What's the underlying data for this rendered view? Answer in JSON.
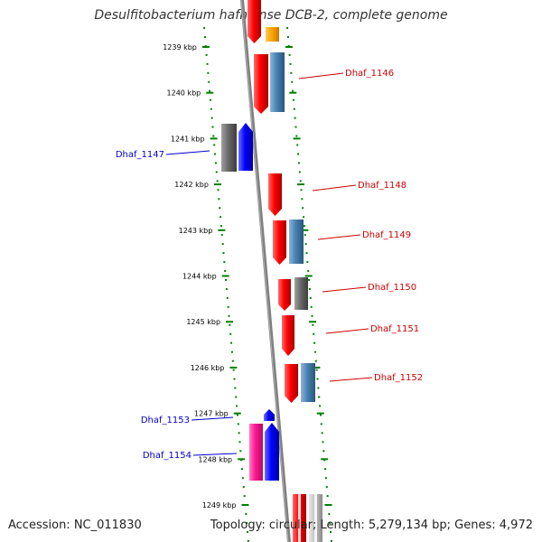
{
  "title": "Desulfitobacterium hafniense DCB-2, complete genome",
  "footer": {
    "accession": "Accession: NC_011830",
    "topology": "Topology: circular; Length: 5,279,134 bp; Genes: 4,972"
  },
  "colors": {
    "forward_gene": "#ff0000",
    "reverse_gene": "#0000ff",
    "feature_steelblue": "#4682b4",
    "feature_gray": "#696969",
    "feature_orange": "#ffa500",
    "feature_pink": "#ff1493",
    "feature_lightgray": "#c0c0c0",
    "forward_label": "#cc0000",
    "reverse_label": "#0000cc",
    "ruler": "#008000",
    "backbone": "#808080"
  },
  "ruler": {
    "unit": "kbp",
    "ticks": [
      "1239 kbp",
      "1240 kbp",
      "1241 kbp",
      "1242 kbp",
      "1243 kbp",
      "1244 kbp",
      "1245 kbp",
      "1246 kbp",
      "1247 kbp",
      "1248 kbp",
      "1249 kbp"
    ]
  },
  "gene_labels": [
    {
      "text": "Dhaf_1146",
      "strand": "forward"
    },
    {
      "text": "Dhaf_1147",
      "strand": "reverse"
    },
    {
      "text": "Dhaf_1148",
      "strand": "forward"
    },
    {
      "text": "Dhaf_1149",
      "strand": "forward"
    },
    {
      "text": "Dhaf_1150",
      "strand": "forward"
    },
    {
      "text": "Dhaf_1151",
      "strand": "forward"
    },
    {
      "text": "Dhaf_1152",
      "strand": "forward"
    },
    {
      "text": "Dhaf_1153",
      "strand": "reverse"
    },
    {
      "text": "Dhaf_1154",
      "strand": "reverse"
    }
  ]
}
